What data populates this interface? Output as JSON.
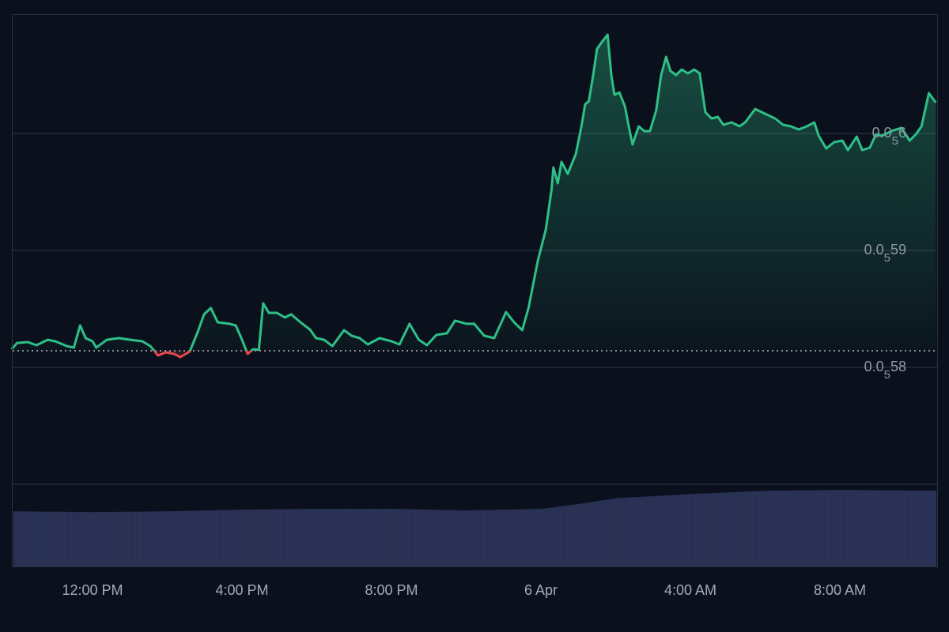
{
  "chart_data": {
    "type": "line",
    "style": "baseline-area",
    "colors": {
      "above": "#2ebf87",
      "below": "#e5484d",
      "volume": "#2b3358",
      "grid": "#2a3240",
      "background": "#0b111c"
    },
    "baseline": 5.8142e-06,
    "ylim": [
      5.7e-06,
      6.102e-06
    ],
    "grid": true,
    "y_ticks": [
      {
        "value": 6e-06,
        "lead": "0.0",
        "sub": "5",
        "digits": "6"
      },
      {
        "value": 5.9e-06,
        "lead": "0.0",
        "sub": "5",
        "digits": "59"
      },
      {
        "value": 5.8e-06,
        "lead": "0.0",
        "sub": "5",
        "digits": "58"
      }
    ],
    "x_ticks": [
      {
        "t": "Apr 5 12:00",
        "label": "12:00 PM"
      },
      {
        "t": "Apr 5 16:00",
        "label": "4:00 PM"
      },
      {
        "t": "Apr 5 20:00",
        "label": "8:00 PM"
      },
      {
        "t": "Apr 6 00:00",
        "label": "6 Apr"
      },
      {
        "t": "Apr 6 04:00",
        "label": "4:00 AM"
      },
      {
        "t": "Apr 6 08:00",
        "label": "8:00 AM"
      }
    ],
    "xlim": [
      "Apr 5 09:50",
      "Apr 6 10:34"
    ],
    "series": [
      {
        "points": [
          [
            "Apr 5 09:50",
            5.8155e-06
          ],
          [
            "Apr 5 09:59",
            5.8209e-06
          ],
          [
            "Apr 5 10:16",
            5.8216e-06
          ],
          [
            "Apr 5 10:30",
            5.8189e-06
          ],
          [
            "Apr 5 10:48",
            5.8236e-06
          ],
          [
            "Apr 5 11:00",
            5.8223e-06
          ],
          [
            "Apr 5 11:19",
            5.8182e-06
          ],
          [
            "Apr 5 11:30",
            5.8169e-06
          ],
          [
            "Apr 5 11:40",
            5.8358e-06
          ],
          [
            "Apr 5 11:49",
            5.825e-06
          ],
          [
            "Apr 5 12:00",
            5.8223e-06
          ],
          [
            "Apr 5 12:06",
            5.8169e-06
          ],
          [
            "Apr 5 12:23",
            5.8236e-06
          ],
          [
            "Apr 5 12:42",
            5.825e-06
          ],
          [
            "Apr 5 13:01",
            5.8236e-06
          ],
          [
            "Apr 5 13:20",
            5.8223e-06
          ],
          [
            "Apr 5 13:33",
            5.8182e-06
          ],
          [
            "Apr 5 13:45",
            5.8101e-06
          ],
          [
            "Apr 5 13:58",
            5.8128e-06
          ],
          [
            "Apr 5 14:11",
            5.8115e-06
          ],
          [
            "Apr 5 14:21",
            5.8088e-06
          ],
          [
            "Apr 5 14:36",
            5.8135e-06
          ],
          [
            "Apr 5 14:49",
            5.8304e-06
          ],
          [
            "Apr 5 14:59",
            5.8453e-06
          ],
          [
            "Apr 5 15:10",
            5.8507e-06
          ],
          [
            "Apr 5 15:21",
            5.8385e-06
          ],
          [
            "Apr 5 15:40",
            5.8372e-06
          ],
          [
            "Apr 5 15:50",
            5.8358e-06
          ],
          [
            "Apr 5 15:59",
            5.825e-06
          ],
          [
            "Apr 5 16:09",
            5.8115e-06
          ],
          [
            "Apr 5 16:18",
            5.8155e-06
          ],
          [
            "Apr 5 16:27",
            5.8149e-06
          ],
          [
            "Apr 5 16:34",
            5.8547e-06
          ],
          [
            "Apr 5 16:43",
            5.8466e-06
          ],
          [
            "Apr 5 16:56",
            5.8466e-06
          ],
          [
            "Apr 5 17:09",
            5.8426e-06
          ],
          [
            "Apr 5 17:19",
            5.8453e-06
          ],
          [
            "Apr 5 17:34",
            5.8385e-06
          ],
          [
            "Apr 5 17:49",
            5.8324e-06
          ],
          [
            "Apr 5 17:59",
            5.825e-06
          ],
          [
            "Apr 5 18:12",
            5.8236e-06
          ],
          [
            "Apr 5 18:25",
            5.8182e-06
          ],
          [
            "Apr 5 18:44",
            5.8318e-06
          ],
          [
            "Apr 5 18:56",
            5.827e-06
          ],
          [
            "Apr 5 19:09",
            5.825e-06
          ],
          [
            "Apr 5 19:22",
            5.8196e-06
          ],
          [
            "Apr 5 19:41",
            5.825e-06
          ],
          [
            "Apr 5 20:00",
            5.8223e-06
          ],
          [
            "Apr 5 20:13",
            5.8196e-06
          ],
          [
            "Apr 5 20:29",
            5.8372e-06
          ],
          [
            "Apr 5 20:44",
            5.8236e-06
          ],
          [
            "Apr 5 20:57",
            5.8189e-06
          ],
          [
            "Apr 5 21:12",
            5.8277e-06
          ],
          [
            "Apr 5 21:29",
            5.8291e-06
          ],
          [
            "Apr 5 21:42",
            5.8399e-06
          ],
          [
            "Apr 5 22:01",
            5.8372e-06
          ],
          [
            "Apr 5 22:13",
            5.8372e-06
          ],
          [
            "Apr 5 22:29",
            5.827e-06
          ],
          [
            "Apr 5 22:45",
            5.825e-06
          ],
          [
            "Apr 5 23:04",
            5.8473e-06
          ],
          [
            "Apr 5 23:17",
            5.8385e-06
          ],
          [
            "Apr 5 23:30",
            5.8318e-06
          ],
          [
            "Apr 5 23:40",
            5.8507e-06
          ],
          [
            "Apr 5 23:55",
            5.8912e-06
          ],
          [
            "Apr 6 00:08",
            5.9182e-06
          ],
          [
            "Apr 6 00:17",
            5.952e-06
          ],
          [
            "Apr 6 00:20",
            5.9709e-06
          ],
          [
            "Apr 6 00:27",
            5.9574e-06
          ],
          [
            "Apr 6 00:33",
            5.9757e-06
          ],
          [
            "Apr 6 00:43",
            5.9655e-06
          ],
          [
            "Apr 6 00:56",
            5.9824e-06
          ],
          [
            "Apr 6 01:05",
            6.0061e-06
          ],
          [
            "Apr 6 01:11",
            6.025e-06
          ],
          [
            "Apr 6 01:17",
            6.0277e-06
          ],
          [
            "Apr 6 01:24",
            6.05e-06
          ],
          [
            "Apr 6 01:30",
            6.0723e-06
          ],
          [
            "Apr 6 01:39",
            6.0791e-06
          ],
          [
            "Apr 6 01:47",
            6.0845e-06
          ],
          [
            "Apr 6 01:53",
            6.05e-06
          ],
          [
            "Apr 6 01:58",
            6.0331e-06
          ],
          [
            "Apr 6 02:06",
            6.0351e-06
          ],
          [
            "Apr 6 02:15",
            6.023e-06
          ],
          [
            "Apr 6 02:21",
            6.0061e-06
          ],
          [
            "Apr 6 02:27",
            5.9905e-06
          ],
          [
            "Apr 6 02:37",
            6.0061e-06
          ],
          [
            "Apr 6 02:46",
            6.002e-06
          ],
          [
            "Apr 6 02:55",
            6.002e-06
          ],
          [
            "Apr 6 03:05",
            6.0196e-06
          ],
          [
            "Apr 6 03:13",
            6.05e-06
          ],
          [
            "Apr 6 03:21",
            6.0655e-06
          ],
          [
            "Apr 6 03:28",
            6.0534e-06
          ],
          [
            "Apr 6 03:37",
            6.05e-06
          ],
          [
            "Apr 6 03:46",
            6.0547e-06
          ],
          [
            "Apr 6 03:56",
            6.0514e-06
          ],
          [
            "Apr 6 04:06",
            6.0547e-06
          ],
          [
            "Apr 6 04:15",
            6.0514e-06
          ],
          [
            "Apr 6 04:24",
            6.0182e-06
          ],
          [
            "Apr 6 04:34",
            6.0128e-06
          ],
          [
            "Apr 6 04:44",
            6.0142e-06
          ],
          [
            "Apr 6 04:53",
            6.0074e-06
          ],
          [
            "Apr 6 05:06",
            6.0095e-06
          ],
          [
            "Apr 6 05:19",
            6.0061e-06
          ],
          [
            "Apr 6 05:28",
            6.0095e-06
          ],
          [
            "Apr 6 05:44",
            6.0209e-06
          ],
          [
            "Apr 6 05:57",
            6.0176e-06
          ],
          [
            "Apr 6 06:16",
            6.0128e-06
          ],
          [
            "Apr 6 06:29",
            6.0074e-06
          ],
          [
            "Apr 6 06:41",
            6.0061e-06
          ],
          [
            "Apr 6 06:54",
            6.0034e-06
          ],
          [
            "Apr 6 07:07",
            6.0061e-06
          ],
          [
            "Apr 6 07:19",
            6.0095e-06
          ],
          [
            "Apr 6 07:26",
            5.998e-06
          ],
          [
            "Apr 6 07:38",
            5.9872e-06
          ],
          [
            "Apr 6 07:51",
            5.9926e-06
          ],
          [
            "Apr 6 08:04",
            5.9939e-06
          ],
          [
            "Apr 6 08:13",
            5.9858e-06
          ],
          [
            "Apr 6 08:27",
            5.9973e-06
          ],
          [
            "Apr 6 08:36",
            5.9858e-06
          ],
          [
            "Apr 6 08:48",
            5.9878e-06
          ],
          [
            "Apr 6 08:58",
            5.9993e-06
          ],
          [
            "Apr 6 09:07",
            5.998e-06
          ],
          [
            "Apr 6 09:26",
            6.0027e-06
          ],
          [
            "Apr 6 09:39",
            6.0047e-06
          ],
          [
            "Apr 6 09:52",
            5.9939e-06
          ],
          [
            "Apr 6 10:02",
            5.9993e-06
          ],
          [
            "Apr 6 10:11",
            6.0061e-06
          ],
          [
            "Apr 6 10:23",
            6.0345e-06
          ],
          [
            "Apr 6 10:34",
            6.0264e-06
          ]
        ]
      }
    ],
    "volume_relative": [
      [
        "Apr 5 09:50",
        0.67
      ],
      [
        "Apr 5 12:00",
        0.66
      ],
      [
        "Apr 5 14:00",
        0.67
      ],
      [
        "Apr 5 16:00",
        0.69
      ],
      [
        "Apr 5 18:00",
        0.7
      ],
      [
        "Apr 5 20:00",
        0.7
      ],
      [
        "Apr 5 22:00",
        0.68
      ],
      [
        "Apr 6 00:00",
        0.7
      ],
      [
        "Apr 6 01:00",
        0.76
      ],
      [
        "Apr 6 02:00",
        0.83
      ],
      [
        "Apr 6 04:00",
        0.88
      ],
      [
        "Apr 6 06:00",
        0.92
      ],
      [
        "Apr 6 08:00",
        0.93
      ],
      [
        "Apr 6 10:34",
        0.92
      ]
    ]
  }
}
